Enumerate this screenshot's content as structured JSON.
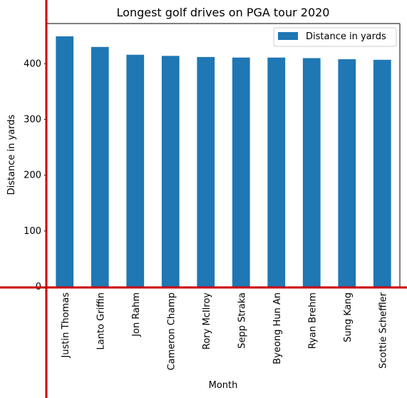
{
  "chart_data": {
    "type": "bar",
    "title": "Longest golf drives on PGA tour 2020",
    "xlabel": "Month",
    "ylabel": "Distance in yards",
    "categories": [
      "Justin Thomas",
      "Lanto Griffin",
      "Jon Rahm",
      "Cameron Champ",
      "Rory McIlroy",
      "Sepp Straka",
      "Byeong Hun An",
      "Ryan Brehm",
      "Sung Kang",
      "Scottie Scheffler"
    ],
    "series": [
      {
        "name": "Distance in yards",
        "values": [
          449,
          430,
          416,
          414,
          412,
          411,
          411,
          410,
          408,
          407
        ],
        "color": "#1f77b4"
      }
    ],
    "ylim": [
      0,
      472
    ],
    "yticks": [
      0,
      100,
      200,
      300,
      400
    ],
    "grid": false,
    "legend": "top-right",
    "axis_line_color": "#cc0000"
  }
}
